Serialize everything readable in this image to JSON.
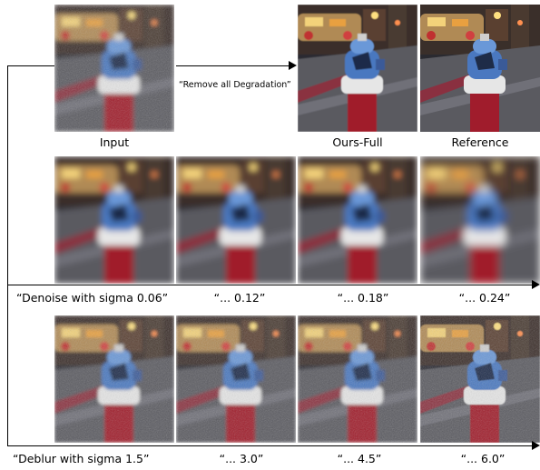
{
  "top_row": {
    "instruction": "“Remove all Degradation”",
    "input_label": "Input",
    "ours_label": "Ours-Full",
    "reference_label": "Reference"
  },
  "denoise_row": {
    "labels": [
      "“Denoise with sigma 0.06”",
      "“... 0.12”",
      "“... 0.18”",
      "“... 0.24”"
    ]
  },
  "deblur_row": {
    "labels": [
      "“Deblur with sigma 1.5”",
      "“... 3.0”",
      "“... 4.5”",
      "“... 6.0”"
    ]
  }
}
